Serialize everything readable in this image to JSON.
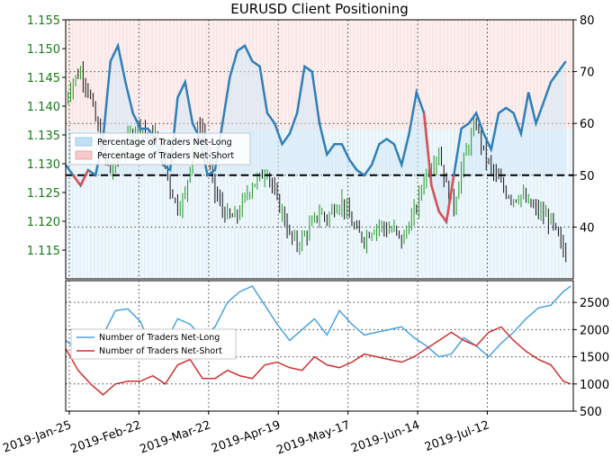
{
  "chart_data": [
    {
      "type": "line",
      "title": "EURUSD Client Positioning",
      "x_tick_labels": [
        "2019-Jan-25",
        "2019-Feb-22",
        "2019-Mar-22",
        "2019-Apr-19",
        "2019-May-17",
        "2019-Jun-14",
        "2019-Jul-12"
      ],
      "x_range_days": [
        0,
        190
      ],
      "y_left": {
        "ticks": [
          "1.115",
          "1.120",
          "1.125",
          "1.130",
          "1.135",
          "1.140",
          "1.145",
          "1.150",
          "1.155"
        ],
        "range": [
          1.11,
          1.155
        ],
        "color": "#1a7a1a"
      },
      "y_right": {
        "ticks": [
          "40",
          "50",
          "60",
          "70",
          "80"
        ],
        "range": [
          30,
          80
        ]
      },
      "reference_line": 50,
      "grid": true,
      "legend_position": "upper-left",
      "series": [
        {
          "name": "Percentage of Traders Net-Long",
          "color_line": "#2f7fb8",
          "color_fill": "#bfe0f5"
        },
        {
          "name": "Percentage of Traders Net-Short",
          "color_line": "#e05050",
          "color_fill": "#f7c9c9"
        }
      ],
      "pct_long_points": [
        [
          0,
          52
        ],
        [
          3,
          50
        ],
        [
          6,
          48
        ],
        [
          9,
          51
        ],
        [
          12,
          50
        ],
        [
          15,
          57
        ],
        [
          18,
          72
        ],
        [
          21,
          75
        ],
        [
          24,
          68
        ],
        [
          27,
          62
        ],
        [
          30,
          59
        ],
        [
          33,
          59
        ],
        [
          36,
          57
        ],
        [
          39,
          52
        ],
        [
          42,
          51
        ],
        [
          45,
          65
        ],
        [
          48,
          68
        ],
        [
          51,
          60
        ],
        [
          54,
          57
        ],
        [
          57,
          50
        ],
        [
          60,
          51
        ],
        [
          63,
          60
        ],
        [
          66,
          69
        ],
        [
          69,
          74
        ],
        [
          72,
          75
        ],
        [
          75,
          72
        ],
        [
          78,
          71
        ],
        [
          81,
          62
        ],
        [
          84,
          60
        ],
        [
          87,
          56
        ],
        [
          90,
          58
        ],
        [
          93,
          62
        ],
        [
          96,
          71
        ],
        [
          99,
          70
        ],
        [
          102,
          60
        ],
        [
          105,
          54
        ],
        [
          108,
          56
        ],
        [
          111,
          56
        ],
        [
          114,
          53
        ],
        [
          117,
          51
        ],
        [
          120,
          50
        ],
        [
          123,
          52
        ],
        [
          126,
          56
        ],
        [
          129,
          57
        ],
        [
          132,
          56
        ],
        [
          135,
          52
        ],
        [
          138,
          58
        ],
        [
          141,
          66
        ],
        [
          144,
          62
        ],
        [
          147,
          48
        ],
        [
          150,
          43
        ],
        [
          153,
          41
        ],
        [
          156,
          50
        ],
        [
          159,
          59
        ],
        [
          162,
          60
        ],
        [
          165,
          62
        ],
        [
          168,
          58
        ],
        [
          171,
          55
        ],
        [
          174,
          62
        ],
        [
          177,
          63
        ],
        [
          180,
          62
        ],
        [
          183,
          58
        ],
        [
          186,
          66
        ],
        [
          189,
          60
        ],
        [
          192,
          64
        ],
        [
          195,
          68
        ],
        [
          198,
          70
        ],
        [
          201,
          72
        ]
      ],
      "ohlc_close_points": [
        [
          0,
          1.1412
        ],
        [
          3,
          1.1445
        ],
        [
          6,
          1.146
        ],
        [
          9,
          1.143
        ],
        [
          12,
          1.1375
        ],
        [
          15,
          1.132
        ],
        [
          18,
          1.1285
        ],
        [
          21,
          1.131
        ],
        [
          24,
          1.133
        ],
        [
          27,
          1.136
        ],
        [
          30,
          1.137
        ],
        [
          33,
          1.1345
        ],
        [
          36,
          1.135
        ],
        [
          39,
          1.1315
        ],
        [
          42,
          1.1258
        ],
        [
          45,
          1.1225
        ],
        [
          48,
          1.1245
        ],
        [
          51,
          1.133
        ],
        [
          54,
          1.137
        ],
        [
          57,
          1.1315
        ],
        [
          60,
          1.125
        ],
        [
          63,
          1.122
        ],
        [
          66,
          1.1205
        ],
        [
          69,
          1.121
        ],
        [
          72,
          1.124
        ],
        [
          75,
          1.1265
        ],
        [
          78,
          1.1275
        ],
        [
          81,
          1.129
        ],
        [
          84,
          1.1245
        ],
        [
          87,
          1.1215
        ],
        [
          90,
          1.1175
        ],
        [
          93,
          1.116
        ],
        [
          96,
          1.1175
        ],
        [
          99,
          1.1195
        ],
        [
          102,
          1.1215
        ],
        [
          105,
          1.1205
        ],
        [
          108,
          1.1225
        ],
        [
          111,
          1.1235
        ],
        [
          114,
          1.1205
        ],
        [
          117,
          1.118
        ],
        [
          120,
          1.117
        ],
        [
          123,
          1.1185
        ],
        [
          126,
          1.1195
        ],
        [
          129,
          1.1185
        ],
        [
          132,
          1.1185
        ],
        [
          135,
          1.1165
        ],
        [
          138,
          1.1195
        ],
        [
          141,
          1.1225
        ],
        [
          144,
          1.1275
        ],
        [
          147,
          1.13
        ],
        [
          150,
          1.132
        ],
        [
          153,
          1.126
        ],
        [
          156,
          1.1225
        ],
        [
          159,
          1.129
        ],
        [
          162,
          1.1335
        ],
        [
          165,
          1.137
        ],
        [
          168,
          1.132
        ],
        [
          171,
          1.129
        ],
        [
          174,
          1.127
        ],
        [
          177,
          1.125
        ],
        [
          180,
          1.124
        ],
        [
          183,
          1.1245
        ],
        [
          186,
          1.123
        ],
        [
          189,
          1.122
        ],
        [
          192,
          1.121
        ],
        [
          195,
          1.12
        ],
        [
          198,
          1.117
        ],
        [
          201,
          1.114
        ]
      ]
    },
    {
      "type": "line",
      "x_tick_labels": [
        "2019-Jan-25",
        "2019-Feb-22",
        "2019-Mar-22",
        "2019-Apr-19",
        "2019-May-17",
        "2019-Jun-14",
        "2019-Jul-12"
      ],
      "y_right": {
        "ticks": [
          "500",
          "1000",
          "1500",
          "2000",
          "2500"
        ],
        "range": [
          500,
          2900
        ]
      },
      "grid": true,
      "legend_position": "center-left",
      "series": [
        {
          "name": "Number of Traders Net-Long",
          "color": "#4aa3df",
          "points": [
            [
              0,
              1800
            ],
            [
              5,
              1620
            ],
            [
              10,
              1700
            ],
            [
              15,
              1900
            ],
            [
              20,
              2350
            ],
            [
              25,
              2380
            ],
            [
              30,
              2150
            ],
            [
              35,
              1600
            ],
            [
              40,
              1750
            ],
            [
              45,
              2200
            ],
            [
              50,
              2100
            ],
            [
              55,
              1850
            ],
            [
              60,
              2050
            ],
            [
              65,
              2500
            ],
            [
              70,
              2700
            ],
            [
              75,
              2800
            ],
            [
              80,
              2450
            ],
            [
              85,
              2100
            ],
            [
              90,
              1800
            ],
            [
              95,
              2000
            ],
            [
              100,
              2200
            ],
            [
              105,
              1900
            ],
            [
              110,
              2350
            ],
            [
              115,
              2100
            ],
            [
              120,
              1900
            ],
            [
              125,
              1950
            ],
            [
              130,
              2000
            ],
            [
              135,
              2050
            ],
            [
              140,
              1850
            ],
            [
              145,
              1700
            ],
            [
              150,
              1500
            ],
            [
              155,
              1550
            ],
            [
              160,
              1850
            ],
            [
              165,
              1700
            ],
            [
              170,
              1500
            ],
            [
              175,
              1750
            ],
            [
              180,
              1950
            ],
            [
              185,
              2200
            ],
            [
              190,
              2400
            ],
            [
              195,
              2450
            ],
            [
              200,
              2700
            ],
            [
              203,
              2800
            ]
          ]
        },
        {
          "name": "Number of Traders Net-Short",
          "color": "#d03030",
          "points": [
            [
              0,
              1650
            ],
            [
              5,
              1250
            ],
            [
              10,
              1000
            ],
            [
              15,
              800
            ],
            [
              20,
              1000
            ],
            [
              25,
              1050
            ],
            [
              30,
              1050
            ],
            [
              35,
              1150
            ],
            [
              40,
              1000
            ],
            [
              45,
              1350
            ],
            [
              50,
              1450
            ],
            [
              55,
              1100
            ],
            [
              60,
              1100
            ],
            [
              65,
              1250
            ],
            [
              70,
              1150
            ],
            [
              75,
              1100
            ],
            [
              80,
              1350
            ],
            [
              85,
              1400
            ],
            [
              90,
              1300
            ],
            [
              95,
              1250
            ],
            [
              100,
              1500
            ],
            [
              105,
              1350
            ],
            [
              110,
              1300
            ],
            [
              115,
              1400
            ],
            [
              120,
              1550
            ],
            [
              125,
              1500
            ],
            [
              130,
              1450
            ],
            [
              135,
              1400
            ],
            [
              140,
              1500
            ],
            [
              145,
              1650
            ],
            [
              150,
              1800
            ],
            [
              155,
              1950
            ],
            [
              160,
              1800
            ],
            [
              165,
              1700
            ],
            [
              170,
              1950
            ],
            [
              175,
              2050
            ],
            [
              180,
              1800
            ],
            [
              185,
              1600
            ],
            [
              190,
              1450
            ],
            [
              195,
              1350
            ],
            [
              200,
              1050
            ],
            [
              203,
              1000
            ]
          ]
        }
      ]
    }
  ]
}
